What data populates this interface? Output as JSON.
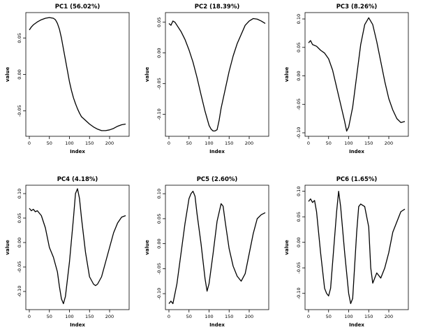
{
  "chart_data": [
    {
      "type": "line",
      "title": "PC1 (56.02%)",
      "xlabel": "Index",
      "ylabel": "value",
      "xlim": [
        0,
        240
      ],
      "ylim": [
        -0.08,
        0.08
      ],
      "x_ticks": [
        0,
        50,
        100,
        150,
        200
      ],
      "y_ticks": [
        0.05,
        0.0,
        -0.05
      ],
      "y_tick_labels": [
        "0.05",
        "0.00",
        "-0.05"
      ],
      "series": [
        {
          "x": [
            0,
            5,
            10,
            20,
            30,
            40,
            50,
            60,
            65,
            70,
            75,
            80,
            85,
            90,
            95,
            100,
            105,
            110,
            115,
            120,
            125,
            130,
            140,
            150,
            160,
            170,
            180,
            190,
            200,
            210,
            220,
            230,
            240
          ],
          "y": [
            0.061,
            0.065,
            0.068,
            0.072,
            0.075,
            0.077,
            0.078,
            0.077,
            0.075,
            0.07,
            0.062,
            0.05,
            0.035,
            0.02,
            0.005,
            -0.01,
            -0.022,
            -0.032,
            -0.04,
            -0.047,
            -0.053,
            -0.058,
            -0.063,
            -0.068,
            -0.072,
            -0.075,
            -0.077,
            -0.077,
            -0.076,
            -0.074,
            -0.071,
            -0.069,
            -0.068
          ]
        }
      ]
    },
    {
      "type": "line",
      "title": "PC2 (18.39%)",
      "xlabel": "Index",
      "ylabel": "value",
      "xlim": [
        0,
        240
      ],
      "ylim": [
        -0.13,
        0.06
      ],
      "x_ticks": [
        0,
        50,
        100,
        150,
        200
      ],
      "y_ticks": [
        0.05,
        0.0,
        -0.05,
        -0.1
      ],
      "y_tick_labels": [
        "0.05",
        "0.00",
        "-0.05",
        "-0.10"
      ],
      "series": [
        {
          "x": [
            0,
            5,
            10,
            15,
            20,
            30,
            40,
            50,
            60,
            70,
            80,
            90,
            100,
            105,
            110,
            115,
            120,
            125,
            130,
            140,
            150,
            160,
            170,
            180,
            190,
            200,
            210,
            220,
            230,
            240
          ],
          "y": [
            0.048,
            0.045,
            0.052,
            0.05,
            0.045,
            0.035,
            0.022,
            0.005,
            -0.015,
            -0.04,
            -0.068,
            -0.095,
            -0.118,
            -0.124,
            -0.127,
            -0.127,
            -0.125,
            -0.11,
            -0.09,
            -0.06,
            -0.03,
            -0.005,
            0.015,
            0.03,
            0.045,
            0.052,
            0.056,
            0.055,
            0.052,
            0.048
          ]
        }
      ]
    },
    {
      "type": "line",
      "title": "PC3 (8.26%)",
      "xlabel": "Index",
      "ylabel": "value",
      "xlim": [
        0,
        240
      ],
      "ylim": [
        -0.1,
        0.105
      ],
      "x_ticks": [
        0,
        50,
        100,
        150,
        200
      ],
      "y_ticks": [
        0.1,
        0.05,
        0.0,
        -0.05,
        -0.1
      ],
      "y_tick_labels": [
        "0.10",
        "0.05",
        "0.00",
        "-0.05",
        "-0.10"
      ],
      "series": [
        {
          "x": [
            0,
            5,
            10,
            20,
            30,
            40,
            50,
            60,
            70,
            80,
            90,
            95,
            100,
            110,
            120,
            130,
            140,
            150,
            160,
            170,
            180,
            190,
            200,
            210,
            220,
            230,
            240
          ],
          "y": [
            0.058,
            0.062,
            0.055,
            0.052,
            0.045,
            0.04,
            0.03,
            0.01,
            -0.02,
            -0.05,
            -0.08,
            -0.097,
            -0.09,
            -0.055,
            0.0,
            0.055,
            0.09,
            0.102,
            0.09,
            0.06,
            0.025,
            -0.01,
            -0.04,
            -0.06,
            -0.075,
            -0.082,
            -0.08
          ]
        }
      ]
    },
    {
      "type": "line",
      "title": "PC4 (4.18%)",
      "xlabel": "Index",
      "ylabel": "value",
      "xlim": [
        0,
        240
      ],
      "ylim": [
        -0.13,
        0.11
      ],
      "x_ticks": [
        0,
        50,
        100,
        150,
        200
      ],
      "y_ticks": [
        0.1,
        0.05,
        0.0,
        -0.05,
        -0.1
      ],
      "y_tick_labels": [
        "0.10",
        "0.05",
        "0.00",
        "-0.05",
        "-0.10"
      ],
      "series": [
        {
          "x": [
            0,
            5,
            10,
            15,
            20,
            30,
            40,
            50,
            60,
            70,
            75,
            80,
            85,
            90,
            100,
            110,
            115,
            120,
            125,
            130,
            140,
            150,
            160,
            165,
            170,
            180,
            190,
            200,
            210,
            220,
            230,
            240
          ],
          "y": [
            0.07,
            0.065,
            0.068,
            0.063,
            0.065,
            0.055,
            0.03,
            -0.01,
            -0.03,
            -0.06,
            -0.09,
            -0.115,
            -0.125,
            -0.11,
            -0.04,
            0.05,
            0.1,
            0.11,
            0.09,
            0.05,
            -0.02,
            -0.07,
            -0.085,
            -0.088,
            -0.085,
            -0.07,
            -0.04,
            -0.01,
            0.02,
            0.04,
            0.052,
            0.055
          ]
        }
      ]
    },
    {
      "type": "line",
      "title": "PC5 (2.60%)",
      "xlabel": "Index",
      "ylabel": "value",
      "xlim": [
        0,
        240
      ],
      "ylim": [
        -0.125,
        0.11
      ],
      "x_ticks": [
        0,
        50,
        100,
        150,
        200
      ],
      "y_ticks": [
        0.1,
        0.05,
        0.0,
        -0.05,
        -0.1
      ],
      "y_tick_labels": [
        "0.10",
        "0.05",
        "0.00",
        "-0.05",
        "-0.10"
      ],
      "series": [
        {
          "x": [
            0,
            5,
            10,
            20,
            30,
            40,
            50,
            55,
            60,
            65,
            70,
            80,
            90,
            95,
            100,
            110,
            120,
            130,
            135,
            140,
            150,
            160,
            170,
            180,
            190,
            200,
            210,
            220,
            230,
            240
          ],
          "y": [
            -0.12,
            -0.115,
            -0.12,
            -0.08,
            -0.02,
            0.04,
            0.09,
            0.1,
            0.105,
            0.095,
            0.06,
            0.0,
            -0.07,
            -0.095,
            -0.08,
            -0.02,
            0.045,
            0.08,
            0.075,
            0.045,
            -0.01,
            -0.045,
            -0.065,
            -0.075,
            -0.06,
            -0.02,
            0.02,
            0.05,
            0.058,
            0.062
          ]
        }
      ]
    },
    {
      "type": "line",
      "title": "PC6 (1.65%)",
      "xlabel": "Index",
      "ylabel": "value",
      "xlim": [
        0,
        240
      ],
      "ylim": [
        -0.125,
        0.105
      ],
      "x_ticks": [
        0,
        50,
        100,
        150,
        200
      ],
      "y_ticks": [
        0.1,
        0.05,
        0.0,
        -0.05,
        -0.1
      ],
      "y_tick_labels": [
        "0.10",
        "0.05",
        "0.00",
        "-0.05",
        "-0.10"
      ],
      "series": [
        {
          "x": [
            0,
            5,
            10,
            15,
            20,
            30,
            40,
            45,
            50,
            55,
            60,
            70,
            75,
            80,
            90,
            100,
            105,
            110,
            120,
            125,
            130,
            140,
            150,
            155,
            160,
            170,
            180,
            190,
            200,
            210,
            220,
            230,
            240
          ],
          "y": [
            0.08,
            0.085,
            0.078,
            0.082,
            0.06,
            -0.02,
            -0.09,
            -0.1,
            -0.105,
            -0.09,
            -0.04,
            0.06,
            0.1,
            0.07,
            -0.02,
            -0.1,
            -0.12,
            -0.11,
            0.02,
            0.07,
            0.075,
            0.07,
            0.03,
            -0.05,
            -0.08,
            -0.06,
            -0.07,
            -0.05,
            -0.02,
            0.02,
            0.04,
            0.06,
            0.065
          ]
        }
      ]
    }
  ]
}
